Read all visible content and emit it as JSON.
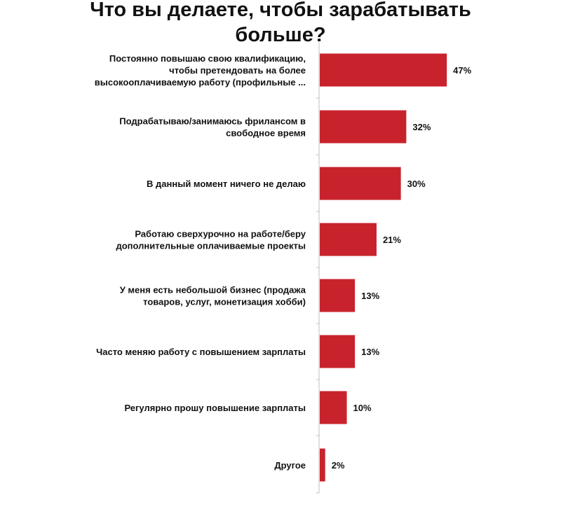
{
  "chart_data": {
    "type": "bar",
    "orientation": "horizontal",
    "title": "Что вы делаете, чтобы зарабатывать больше?",
    "categories": [
      "Постоянно повышаю свою квалификацию, чтобы претендовать на более высокооплачиваемую работу (профильные ...",
      "Подрабатываю/занимаюсь фрилансом в свободное время",
      "В данный момент ничего не делаю",
      "Работаю сверхурочно на работе/беру дополнительные оплачиваемые проекты",
      "У меня есть небольшой бизнес (продажа товаров, услуг, монетизация хобби)",
      "Часто меняю работу с повышением зарплаты",
      "Регулярно прошу повышение зарплаты",
      "Другое"
    ],
    "category_lines": [
      [
        "Постоянно повышаю свою квалификацию,",
        "чтобы претендовать на более",
        "высокооплачиваемую работу (профильные ..."
      ],
      [
        "Подрабатываю/занимаюсь фрилансом в",
        "свободное время"
      ],
      [
        "В данный момент ничего не делаю"
      ],
      [
        "Работаю сверхурочно на работе/беру",
        "дополнительные оплачиваемые проекты"
      ],
      [
        "У меня есть небольшой бизнес (продажа",
        "товаров, услуг, монетизация хобби)"
      ],
      [
        "Часто меняю работу с повышением зарплаты"
      ],
      [
        "Регулярно прошу повышение зарплаты"
      ],
      [
        "Другое"
      ]
    ],
    "values": [
      47,
      32,
      30,
      21,
      13,
      13,
      10,
      2
    ],
    "value_labels": [
      "47%",
      "32%",
      "30%",
      "21%",
      "13%",
      "13%",
      "10%",
      "2%"
    ],
    "bar_color": "#c8232c",
    "axis_color": "#bfbfbf",
    "xlim": [
      0,
      100
    ],
    "grid": false,
    "legend": "none"
  }
}
